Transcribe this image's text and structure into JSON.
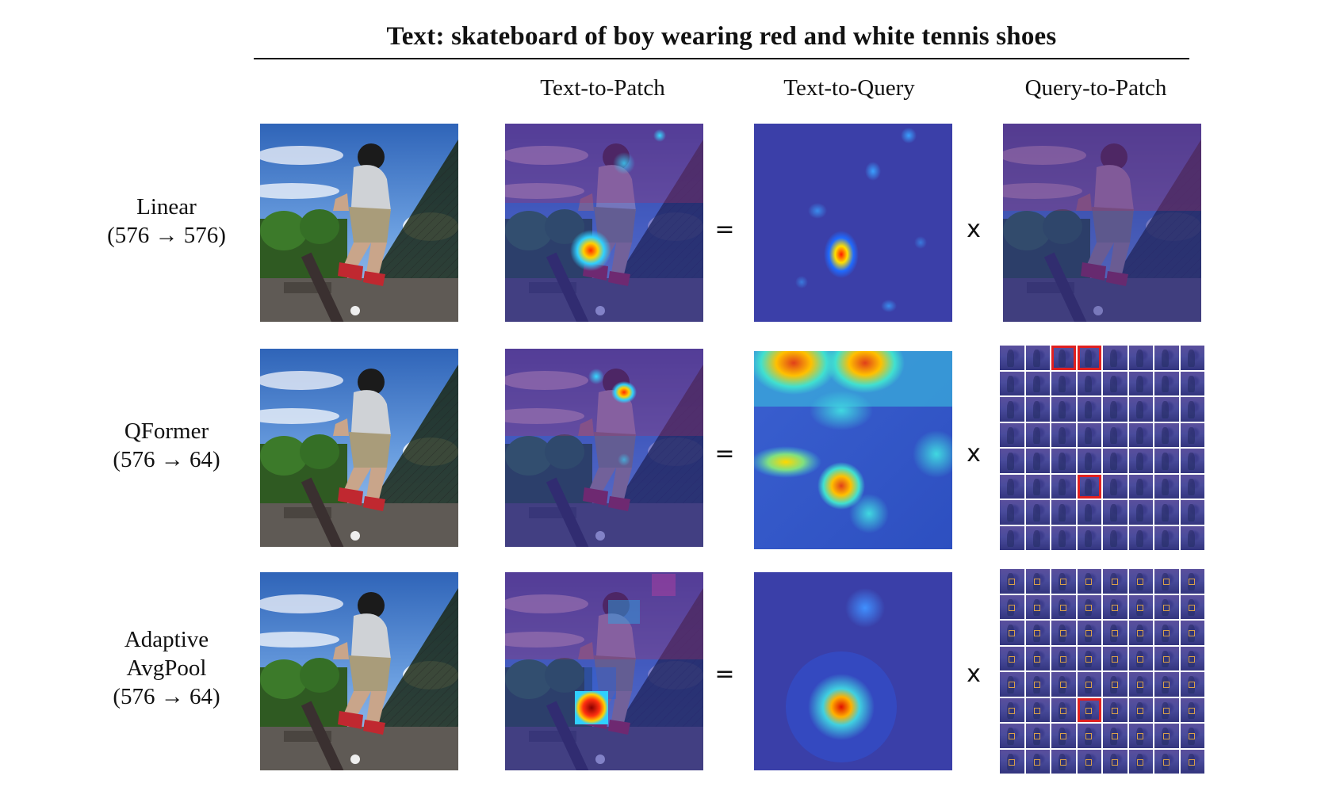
{
  "title": "Text: skateboard of boy wearing red and white tennis shoes",
  "columns": [
    "Text-to-Patch",
    "Text-to-Query",
    "Query-to-Patch"
  ],
  "rows": [
    {
      "name": "Linear",
      "mapping": "(576 → 576)"
    },
    {
      "name": "QFormer",
      "mapping": "(576 → 64)"
    },
    {
      "name_line1": "Adaptive",
      "name_line2": "AvgPool",
      "mapping": "(576 → 64)"
    }
  ],
  "operators": {
    "equals": "=",
    "times": "x"
  },
  "highlight_color": "#e02020"
}
